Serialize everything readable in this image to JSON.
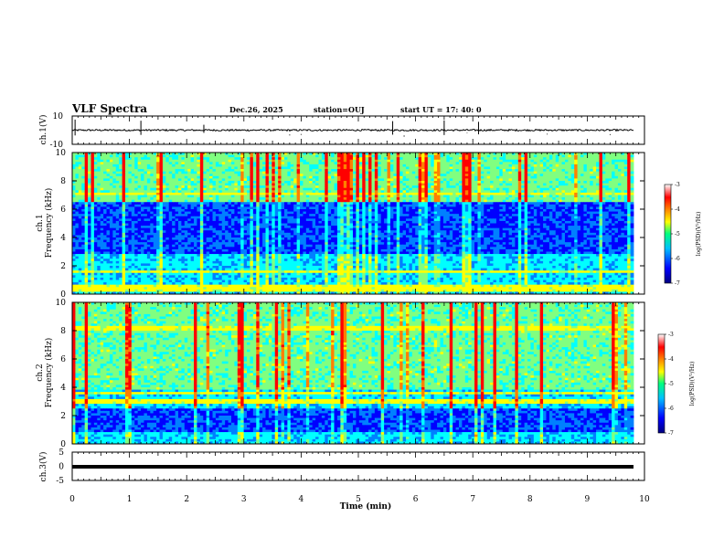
{
  "header": {
    "title": "VLF Spectra",
    "date": "Dec.26, 2025",
    "station": "station=OUJ",
    "start": "start  UT =   17: 40: 0"
  },
  "chart_data": [
    {
      "type": "line",
      "panel": "ch1-waveform",
      "ylabel": "ch.1(V)",
      "ylim": [
        -10,
        10
      ],
      "yticks": [
        10,
        -10
      ],
      "xlim": [
        0,
        10
      ],
      "baseline": 0.0,
      "noise_amplitude": 1.0,
      "spikes_min": [
        0.05,
        1.2,
        2.3,
        3.8,
        4.0,
        5.6,
        5.8,
        6.5,
        6.9,
        7.1,
        8.3,
        9.4
      ]
    },
    {
      "type": "heatmap",
      "panel": "ch1-spectrogram",
      "ylabel": "ch.1 Frequency (kHz)",
      "ylim": [
        0,
        10
      ],
      "yticks": [
        "0",
        "2",
        "4",
        "6",
        "8",
        "10"
      ],
      "xlim": [
        0,
        10
      ],
      "colorbar": {
        "label": "log(PSD)(V²/Hz)",
        "range": [
          -7,
          -3
        ],
        "ticks": [
          "-3",
          "-4",
          "-5",
          "-6",
          "-7"
        ]
      },
      "quiet_band_khz": [
        2.8,
        6.5
      ],
      "active_band_khz": [
        6.5,
        10
      ],
      "strong_lines_khz": [
        0.3,
        0.5,
        1.6,
        7.1
      ]
    },
    {
      "type": "heatmap",
      "panel": "ch2-spectrogram",
      "ylabel": "ch.2 Frequency (kHz)",
      "ylim": [
        0,
        10
      ],
      "yticks": [
        "0",
        "2",
        "4",
        "6",
        "8",
        "10"
      ],
      "xlim": [
        0,
        10
      ],
      "colorbar": {
        "label": "log(PSD)(V²/Hz)",
        "range": [
          -7,
          -3
        ],
        "ticks": [
          "-3",
          "-4",
          "-5",
          "-6",
          "-7"
        ]
      },
      "quiet_band_khz": [
        0.8,
        2.5
      ],
      "active_band_khz": [
        3.8,
        10
      ],
      "strong_lines_khz": [
        3.0,
        3.6,
        8.2
      ]
    },
    {
      "type": "line",
      "panel": "ch3-waveform",
      "ylabel": "ch.3(V)",
      "ylim": [
        -5,
        5
      ],
      "yticks": [
        "5",
        "0",
        "-5"
      ],
      "xlim": [
        0,
        10
      ],
      "baseline": 0.0,
      "noise_amplitude": 0.3
    }
  ],
  "xaxis": {
    "label": "Time  (min)",
    "ticks": [
      "0",
      "1",
      "2",
      "3",
      "4",
      "5",
      "6",
      "7",
      "8",
      "9",
      "10"
    ]
  },
  "colormap": [
    "#00007f",
    "#0000ff",
    "#0080ff",
    "#00ffff",
    "#80ff80",
    "#ffff00",
    "#ff8000",
    "#ff0000",
    "#ffffff"
  ]
}
